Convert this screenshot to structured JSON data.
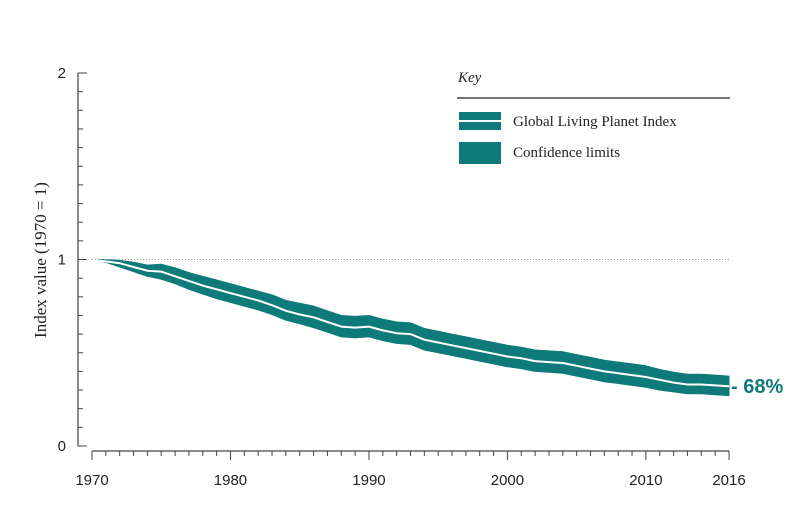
{
  "colors": {
    "band": "#0f7a7a",
    "index_line": "#ffffff",
    "axis": "#444444",
    "reference_line": "#9a9a9a",
    "annotation": "#0f7a7a"
  },
  "chart_data": {
    "type": "area",
    "title": "",
    "xlabel": "",
    "ylabel": "Index value (1970 = 1)",
    "xlim": [
      1970,
      2016
    ],
    "ylim": [
      0,
      2
    ],
    "x_tick_labels": [
      "1970",
      "1980",
      "1990",
      "2000",
      "2010",
      "2016"
    ],
    "y_tick_labels": [
      "2",
      "1",
      "0"
    ],
    "reference_line_y": 1,
    "grid": false,
    "legend": {
      "title": "Key",
      "placement": "top-right",
      "entries": [
        "Global Living Planet Index",
        "Confidence limits"
      ]
    },
    "annotation": "- 68%",
    "x": [
      1970,
      1971,
      1972,
      1973,
      1974,
      1975,
      1976,
      1977,
      1978,
      1979,
      1980,
      1981,
      1982,
      1983,
      1984,
      1985,
      1986,
      1987,
      1988,
      1989,
      1990,
      1991,
      1992,
      1993,
      1994,
      1995,
      1996,
      1997,
      1998,
      1999,
      2000,
      2001,
      2002,
      2003,
      2004,
      2005,
      2006,
      2007,
      2008,
      2009,
      2010,
      2011,
      2012,
      2013,
      2014,
      2015,
      2016
    ],
    "series": [
      {
        "name": "Global Living Planet Index",
        "values": [
          1.0,
          0.99,
          0.98,
          0.96,
          0.94,
          0.935,
          0.91,
          0.885,
          0.86,
          0.84,
          0.82,
          0.8,
          0.78,
          0.755,
          0.725,
          0.705,
          0.69,
          0.665,
          0.64,
          0.635,
          0.64,
          0.62,
          0.605,
          0.6,
          0.57,
          0.555,
          0.54,
          0.525,
          0.51,
          0.495,
          0.48,
          0.47,
          0.455,
          0.45,
          0.445,
          0.43,
          0.415,
          0.4,
          0.39,
          0.38,
          0.37,
          0.355,
          0.34,
          0.33,
          0.33,
          0.325,
          0.32
        ]
      },
      {
        "name": "Confidence limits",
        "upper": [
          1.0,
          1.0,
          0.995,
          0.985,
          0.97,
          0.975,
          0.955,
          0.93,
          0.91,
          0.89,
          0.87,
          0.85,
          0.83,
          0.81,
          0.78,
          0.765,
          0.75,
          0.725,
          0.7,
          0.695,
          0.7,
          0.68,
          0.665,
          0.66,
          0.63,
          0.615,
          0.6,
          0.585,
          0.57,
          0.555,
          0.54,
          0.53,
          0.515,
          0.51,
          0.505,
          0.49,
          0.475,
          0.46,
          0.45,
          0.44,
          0.43,
          0.41,
          0.395,
          0.385,
          0.385,
          0.38,
          0.375
        ],
        "lower": [
          1.0,
          0.985,
          0.96,
          0.935,
          0.91,
          0.895,
          0.87,
          0.84,
          0.815,
          0.79,
          0.77,
          0.75,
          0.73,
          0.705,
          0.675,
          0.655,
          0.635,
          0.61,
          0.585,
          0.58,
          0.585,
          0.565,
          0.55,
          0.545,
          0.515,
          0.5,
          0.485,
          0.47,
          0.455,
          0.44,
          0.425,
          0.415,
          0.4,
          0.395,
          0.39,
          0.375,
          0.36,
          0.345,
          0.335,
          0.325,
          0.315,
          0.3,
          0.29,
          0.28,
          0.28,
          0.275,
          0.27
        ]
      }
    ]
  }
}
